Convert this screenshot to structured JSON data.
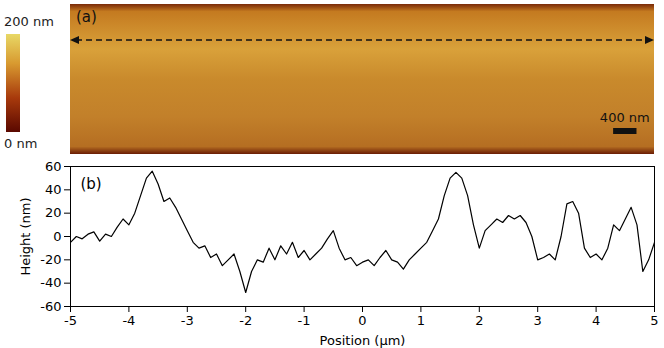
{
  "image": {
    "panel_label": "(a)",
    "colorbar": {
      "range": [
        0,
        200
      ],
      "ticks": [
        {
          "value": 200,
          "label": "200 nm"
        },
        {
          "value": 0,
          "label": "0 nm"
        }
      ]
    },
    "scale_bar": {
      "label": "400 nm",
      "length": 0.4,
      "end": 4.7
    }
  },
  "chart_data": {
    "type": "line",
    "panel_label": "(b)",
    "x_label": "Position (µm)",
    "y_label": "Height (nm)",
    "xlim": [
      -5,
      5
    ],
    "ylim": [
      -60,
      60
    ],
    "xticks": [
      -5,
      -4,
      -3,
      -2,
      -1,
      0,
      1,
      2,
      3,
      4,
      5
    ],
    "yticks": [
      -60,
      -40,
      -20,
      0,
      20,
      40,
      60
    ],
    "color": "#000000",
    "x": [
      -5.0,
      -4.9,
      -4.8,
      -4.7,
      -4.6,
      -4.5,
      -4.4,
      -4.3,
      -4.2,
      -4.1,
      -4.0,
      -3.9,
      -3.8,
      -3.7,
      -3.6,
      -3.5,
      -3.4,
      -3.3,
      -3.2,
      -3.1,
      -3.0,
      -2.9,
      -2.8,
      -2.7,
      -2.6,
      -2.5,
      -2.4,
      -2.3,
      -2.2,
      -2.1,
      -2.0,
      -1.9,
      -1.8,
      -1.7,
      -1.6,
      -1.5,
      -1.4,
      -1.3,
      -1.2,
      -1.1,
      -1.0,
      -0.9,
      -0.8,
      -0.7,
      -0.6,
      -0.5,
      -0.4,
      -0.3,
      -0.2,
      -0.1,
      0.0,
      0.1,
      0.2,
      0.3,
      0.4,
      0.5,
      0.6,
      0.7,
      0.8,
      0.9,
      1.0,
      1.1,
      1.2,
      1.3,
      1.4,
      1.5,
      1.6,
      1.7,
      1.8,
      1.9,
      2.0,
      2.1,
      2.2,
      2.3,
      2.4,
      2.5,
      2.6,
      2.7,
      2.8,
      2.9,
      3.0,
      3.1,
      3.2,
      3.3,
      3.4,
      3.5,
      3.6,
      3.7,
      3.8,
      3.9,
      4.0,
      4.1,
      4.2,
      4.3,
      4.4,
      4.5,
      4.6,
      4.7,
      4.8,
      4.9,
      5.0
    ],
    "values": [
      -5,
      0,
      -2,
      2,
      4,
      -4,
      2,
      0,
      8,
      15,
      10,
      20,
      35,
      50,
      56,
      45,
      30,
      33,
      25,
      15,
      5,
      -5,
      -10,
      -8,
      -18,
      -15,
      -25,
      -20,
      -15,
      -30,
      -48,
      -30,
      -20,
      -22,
      -10,
      -20,
      -8,
      -15,
      -5,
      -18,
      -12,
      -20,
      -15,
      -10,
      -2,
      5,
      -10,
      -20,
      -18,
      -25,
      -22,
      -20,
      -25,
      -18,
      -12,
      -20,
      -22,
      -28,
      -20,
      -15,
      -10,
      -5,
      5,
      15,
      35,
      50,
      55,
      50,
      35,
      10,
      -10,
      5,
      10,
      15,
      12,
      18,
      15,
      18,
      12,
      0,
      -20,
      -18,
      -15,
      -20,
      0,
      28,
      30,
      20,
      -10,
      -18,
      -15,
      -20,
      -10,
      10,
      5,
      15,
      25,
      10,
      -30,
      -20,
      -5
    ]
  }
}
